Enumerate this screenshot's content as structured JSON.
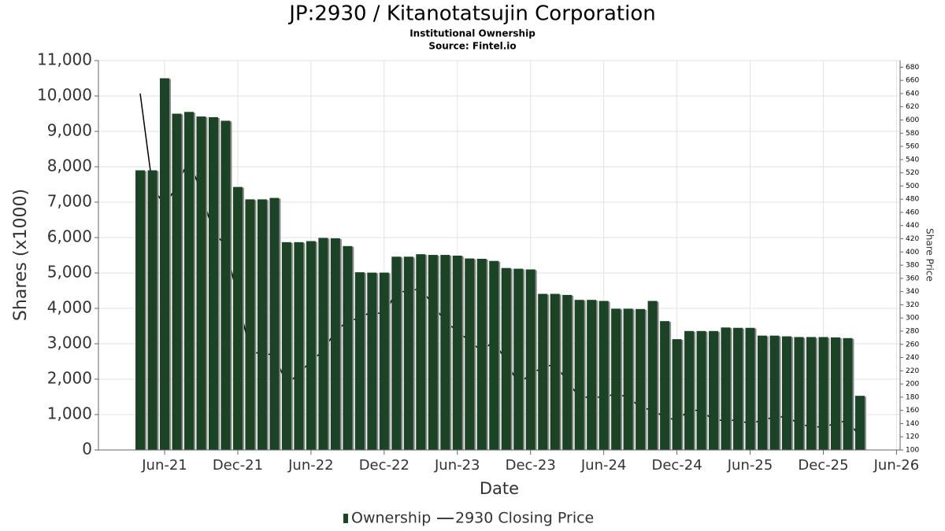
{
  "chart_data": {
    "type": "bar",
    "title": "JP:2930 / Kitanotatsujin Corporation",
    "subtitle": "Institutional Ownership",
    "source": "Source: Fintel.io",
    "x_label": "Date",
    "y_label": "Shares (x1000)",
    "y2_label": "Share Price",
    "x": [
      "2021-04",
      "2021-05",
      "2021-06",
      "2021-07",
      "2021-08",
      "2021-09",
      "2021-10",
      "2021-11",
      "2021-12",
      "2022-01",
      "2022-02",
      "2022-03",
      "2022-04",
      "2022-05",
      "2022-06",
      "2022-07",
      "2022-08",
      "2022-09",
      "2022-10",
      "2022-11",
      "2022-12",
      "2023-01",
      "2023-02",
      "2023-03",
      "2023-04",
      "2023-05",
      "2023-06",
      "2023-07",
      "2023-08",
      "2023-09",
      "2023-10",
      "2023-11",
      "2023-12",
      "2024-01",
      "2024-02",
      "2024-03",
      "2024-04",
      "2024-05",
      "2024-06",
      "2024-07",
      "2024-08",
      "2024-09",
      "2024-10",
      "2024-11",
      "2024-12",
      "2025-01",
      "2025-02",
      "2025-03",
      "2025-04",
      "2025-05",
      "2025-06",
      "2025-07",
      "2025-08",
      "2025-09",
      "2025-10",
      "2025-11",
      "2025-12",
      "2026-01",
      "2026-02",
      "2026-03"
    ],
    "series": [
      {
        "name": "Ownership",
        "type": "bar",
        "color": "#1b4325",
        "values": [
          7900,
          7900,
          10500,
          9500,
          9550,
          9420,
          9400,
          9300,
          7430,
          7080,
          7080,
          7120,
          5870,
          5870,
          5900,
          5990,
          5980,
          5760,
          5020,
          5010,
          5010,
          5460,
          5460,
          5530,
          5510,
          5510,
          5490,
          5410,
          5400,
          5340,
          5140,
          5120,
          5100,
          4410,
          4410,
          4380,
          4240,
          4240,
          4210,
          3990,
          3990,
          3980,
          4210,
          3640,
          3130,
          3360,
          3360,
          3360,
          3460,
          3450,
          3450,
          3230,
          3230,
          3210,
          3190,
          3190,
          3190,
          3180,
          3160,
          1530
        ]
      },
      {
        "name": "2930 Closing Price",
        "type": "line",
        "axis": "y2",
        "color": "#000000",
        "values": [
          640,
          500,
          470,
          500,
          540,
          490,
          430,
          410,
          330,
          250,
          245,
          245,
          200,
          215,
          235,
          250,
          280,
          295,
          300,
          310,
          305,
          340,
          340,
          345,
          320,
          295,
          280,
          265,
          250,
          265,
          235,
          200,
          215,
          225,
          230,
          205,
          180,
          180,
          180,
          185,
          180,
          165,
          160,
          150,
          145,
          160,
          160,
          145,
          145,
          145,
          140,
          145,
          150,
          150,
          140,
          135,
          135,
          140,
          145,
          120
        ]
      }
    ],
    "ylim": [
      0,
      11000
    ],
    "yticks": [
      0,
      {
        "value": 1000,
        "label": "1,000"
      },
      {
        "value": 2000,
        "label": "2,000"
      },
      {
        "value": 3000,
        "label": "3,000"
      },
      {
        "value": 4000,
        "label": "4,000"
      },
      {
        "value": 5000,
        "label": "5,000"
      },
      {
        "value": 6000,
        "label": "6,000"
      },
      {
        "value": 7000,
        "label": "7,000"
      },
      {
        "value": 8000,
        "label": "8,000"
      },
      {
        "value": 9000,
        "label": "9,000"
      },
      {
        "value": 10000,
        "label": "10,000"
      },
      {
        "value": 11000,
        "label": "11,000"
      }
    ],
    "y2lim": [
      100,
      690
    ],
    "y2ticks": [
      100,
      120,
      140,
      160,
      180,
      200,
      220,
      240,
      260,
      280,
      300,
      320,
      340,
      360,
      380,
      400,
      420,
      440,
      460,
      480,
      500,
      520,
      540,
      560,
      580,
      600,
      620,
      640,
      660,
      680
    ],
    "xticks": [
      {
        "value": "2021-06",
        "label": "Jun-21"
      },
      {
        "value": "2021-12",
        "label": "Dec-21"
      },
      {
        "value": "2022-06",
        "label": "Jun-22"
      },
      {
        "value": "2022-12",
        "label": "Dec-22"
      },
      {
        "value": "2023-06",
        "label": "Jun-23"
      },
      {
        "value": "2023-12",
        "label": "Dec-23"
      },
      {
        "value": "2024-06",
        "label": "Jun-24"
      },
      {
        "value": "2024-12",
        "label": "Dec-24"
      },
      {
        "value": "2025-06",
        "label": "Jun-25"
      },
      {
        "value": "2025-12",
        "label": "Dec-25"
      },
      {
        "value": "2026-06",
        "label": "Jun-26"
      }
    ],
    "grid": true,
    "legend": "bottom"
  }
}
